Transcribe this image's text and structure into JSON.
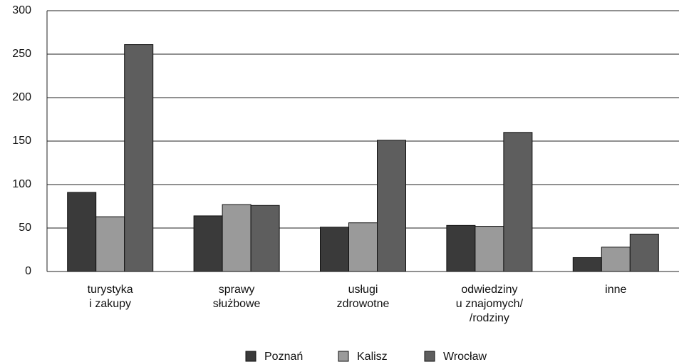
{
  "chart_data": {
    "type": "bar",
    "categories": [
      "turystyka\ni zakupy",
      "sprawy\nsłużbowe",
      "usługi\nzdrowotne",
      "odwiedziny\nu znajomych/\n/rodziny",
      "inne"
    ],
    "series": [
      {
        "name": "Poznań",
        "color": "#3a3a3a",
        "values": [
          91,
          64,
          51,
          53,
          16
        ]
      },
      {
        "name": "Kalisz",
        "color": "#9a9a9a",
        "values": [
          63,
          77,
          56,
          52,
          28
        ]
      },
      {
        "name": "Wrocław",
        "color": "#5e5e5e",
        "values": [
          261,
          76,
          151,
          160,
          43
        ]
      }
    ],
    "ylim": [
      0,
      300
    ],
    "yticks": [
      0,
      50,
      100,
      150,
      200,
      250,
      300
    ],
    "grid": true,
    "legend": "bottom"
  }
}
